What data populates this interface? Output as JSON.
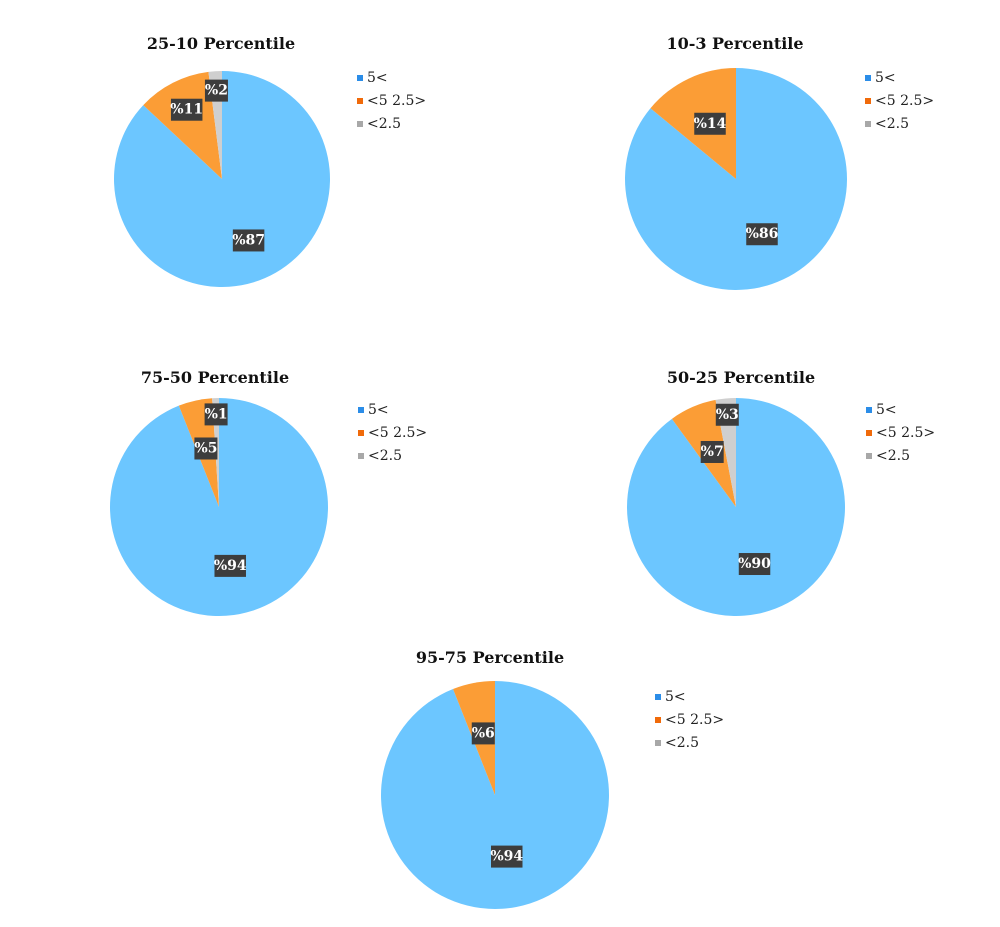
{
  "chart_data": [
    {
      "type": "pie",
      "title": "25-10 Percentile",
      "categories": [
        "5<",
        "<5 2.5>",
        "<2.5"
      ],
      "values": [
        87,
        11,
        2
      ],
      "data_labels": [
        "%87",
        "%11",
        "%2"
      ],
      "colors": [
        "#6cc6ff",
        "#fb9d36",
        "#cfcfcf"
      ]
    },
    {
      "type": "pie",
      "title": "10-3 Percentile",
      "categories": [
        "5<",
        "<5 2.5>",
        "<2.5"
      ],
      "values": [
        86,
        14,
        0
      ],
      "data_labels": [
        "%86",
        "%14",
        ""
      ],
      "colors": [
        "#6cc6ff",
        "#fb9d36",
        "#cfcfcf"
      ]
    },
    {
      "type": "pie",
      "title": "75-50 Percentile",
      "categories": [
        "5<",
        "<5 2.5>",
        "<2.5"
      ],
      "values": [
        94,
        5,
        1
      ],
      "data_labels": [
        "%94",
        "%5",
        "%1"
      ],
      "colors": [
        "#6cc6ff",
        "#fb9d36",
        "#cfcfcf"
      ]
    },
    {
      "type": "pie",
      "title": "50-25 Percentile",
      "categories": [
        "5<",
        "<5 2.5>",
        "<2.5"
      ],
      "values": [
        90,
        7,
        3
      ],
      "data_labels": [
        "%90",
        "%7",
        "%3"
      ],
      "colors": [
        "#6cc6ff",
        "#fb9d36",
        "#cfcfcf"
      ]
    },
    {
      "type": "pie",
      "title": "95-75 Percentile",
      "categories": [
        "5<",
        "<5 2.5>",
        "<2.5"
      ],
      "values": [
        94,
        6,
        0
      ],
      "data_labels": [
        "%94",
        "%6",
        ""
      ],
      "colors": [
        "#6cc6ff",
        "#fb9d36",
        "#cfcfcf"
      ]
    }
  ],
  "legend_swatch_colors": [
    "#2b8de8",
    "#f06a0a",
    "#a8a8a8"
  ],
  "label_box_color": "#3d3d3d",
  "legend_placement": "right"
}
